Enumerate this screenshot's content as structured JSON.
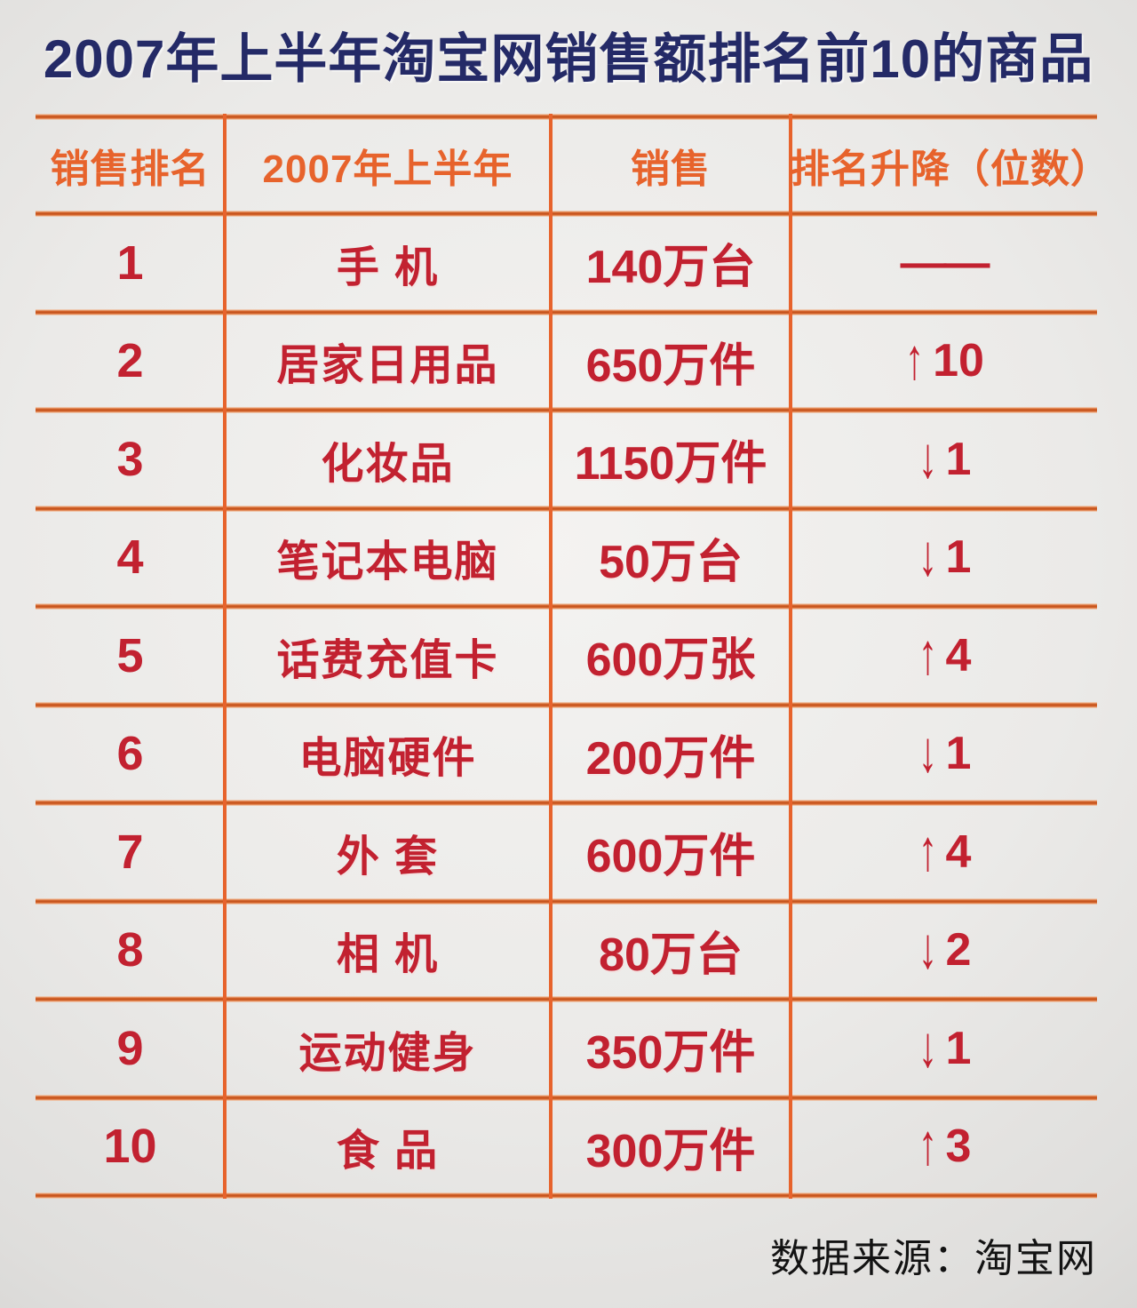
{
  "title": "2007年上半年淘宝网销售额排名前10的商品",
  "footer": {
    "source_label": "数据来源：淘宝网"
  },
  "colors": {
    "title_navy": "#242a67",
    "accent_orange": "#e7632c",
    "grid_line_core": "#bf4f1c",
    "data_crimson": "#c22130",
    "background_gray": "#e9e8e6"
  },
  "table": {
    "headers": [
      "销售排名",
      "2007年上半年",
      "销售",
      "排名升降（位数）"
    ],
    "rows": [
      {
        "rank": "1",
        "product": "手 机",
        "sales": "140万台",
        "change": {
          "direction": "none",
          "text": "——"
        }
      },
      {
        "rank": "2",
        "product": "居家日用品",
        "sales": "650万件",
        "change": {
          "direction": "up",
          "text": "10"
        }
      },
      {
        "rank": "3",
        "product": "化妆品",
        "sales": "1150万件",
        "change": {
          "direction": "down",
          "text": "1"
        }
      },
      {
        "rank": "4",
        "product": "笔记本电脑",
        "sales": "50万台",
        "change": {
          "direction": "down",
          "text": "1"
        }
      },
      {
        "rank": "5",
        "product": "话费充值卡",
        "sales": "600万张",
        "change": {
          "direction": "up",
          "text": "4"
        }
      },
      {
        "rank": "6",
        "product": "电脑硬件",
        "sales": "200万件",
        "change": {
          "direction": "down",
          "text": "1"
        }
      },
      {
        "rank": "7",
        "product": "外 套",
        "sales": "600万件",
        "change": {
          "direction": "up",
          "text": "4"
        }
      },
      {
        "rank": "8",
        "product": "相 机",
        "sales": "80万台",
        "change": {
          "direction": "down",
          "text": "2"
        }
      },
      {
        "rank": "9",
        "product": "运动健身",
        "sales": "350万件",
        "change": {
          "direction": "down",
          "text": "1"
        }
      },
      {
        "rank": "10",
        "product": "食 品",
        "sales": "300万件",
        "change": {
          "diredirection_note": "",
          "direction": "up",
          "text": "3"
        }
      }
    ]
  },
  "chart_data": {
    "type": "table",
    "title": "2007年上半年淘宝网销售额排名前10的商品",
    "columns": [
      "销售排名",
      "2007年上半年",
      "销售",
      "排名升降（位数）"
    ],
    "rows": [
      [
        "1",
        "手 机",
        "140万台",
        "——"
      ],
      [
        "2",
        "居家日用品",
        "650万件",
        "↑10"
      ],
      [
        "3",
        "化妆品",
        "1150万件",
        "↓1"
      ],
      [
        "4",
        "笔记本电脑",
        "50万台",
        "↓1"
      ],
      [
        "5",
        "话费充值卡",
        "600万张",
        "↑4"
      ],
      [
        "6",
        "电脑硬件",
        "200万件",
        "↓1"
      ],
      [
        "7",
        "外 套",
        "600万件",
        "↑4"
      ],
      [
        "8",
        "相 机",
        "80万台",
        "↓2"
      ],
      [
        "9",
        "运动健身",
        "350万件",
        "↓1"
      ],
      [
        "10",
        "食 品",
        "300万件",
        "↑3"
      ]
    ],
    "source": "数据来源：淘宝网",
    "layout": {
      "grid": "orange rules, no outer side borders",
      "header_text_color": "#e7632c",
      "body_text_color": "#c22130"
    }
  }
}
